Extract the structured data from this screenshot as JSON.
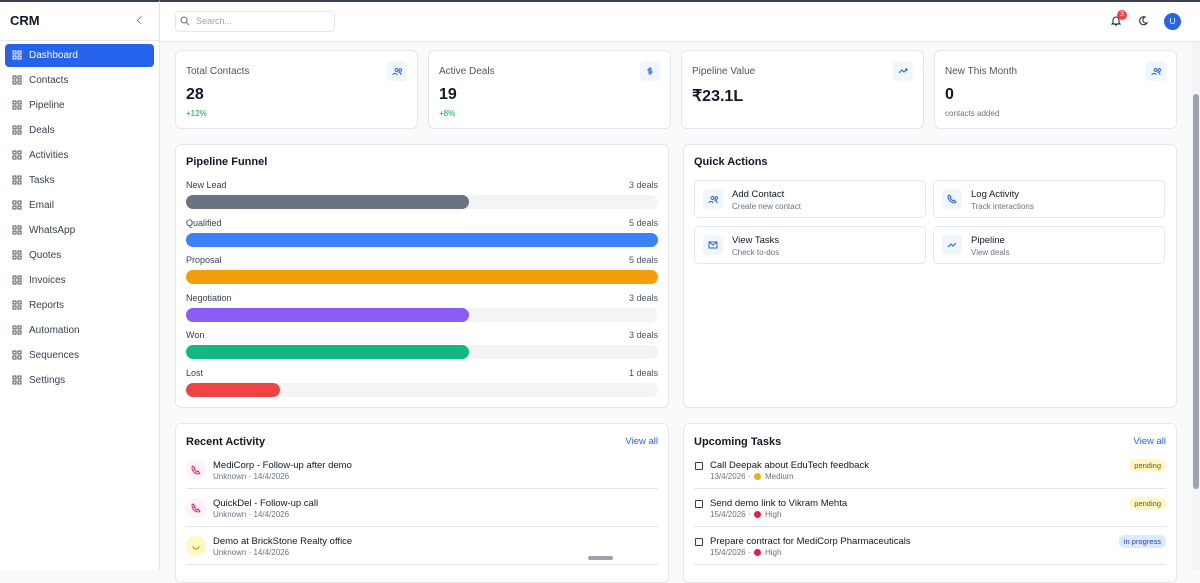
{
  "sidebar": {
    "brand": "CRM",
    "active_index": 0,
    "nav": [
      "Dashboard",
      "Contacts",
      "Pipeline",
      "Deals",
      "Activities",
      "Tasks",
      "Email",
      "WhatsApp",
      "Quotes",
      "Invoices",
      "Reports",
      "Automation",
      "Sequences",
      "Settings"
    ]
  },
  "topbar": {
    "search_placeholder": "Search...",
    "notifications": "3",
    "avatar": "U"
  },
  "stats": [
    {
      "label": "Total Contacts",
      "value": "28",
      "note": "+12%"
    },
    {
      "label": "Active Deals",
      "value": "19",
      "note": "+8%"
    },
    {
      "label": "Pipeline Value",
      "value": "₹23.1L"
    },
    {
      "label": "New This Month",
      "value": "0",
      "note": "contacts added"
    }
  ],
  "funnel": {
    "title": "Pipeline Funnel",
    "stages": [
      {
        "name": "New Lead",
        "count": 3,
        "label": "3 deals",
        "color": "#6b7280"
      },
      {
        "name": "Qualified",
        "count": 5,
        "label": "5 deals",
        "color": "#3b82f6"
      },
      {
        "name": "Proposal",
        "count": 5,
        "label": "5 deals",
        "color": "#f59e0b"
      },
      {
        "name": "Negotiation",
        "count": 3,
        "label": "3 deals",
        "color": "#8b5cf6"
      },
      {
        "name": "Won",
        "count": 3,
        "label": "3 deals",
        "color": "#10b981"
      },
      {
        "name": "Lost",
        "count": 1,
        "label": "1 deals",
        "color": "#ef4444"
      }
    ]
  },
  "quick_actions": {
    "title": "Quick Actions",
    "items": [
      {
        "title": "Add Contact",
        "subtitle": "Create new contact"
      },
      {
        "title": "Log Activity",
        "subtitle": "Track interactions"
      },
      {
        "title": "View Tasks",
        "subtitle": "Check to-dos"
      },
      {
        "title": "Pipeline",
        "subtitle": "View deals"
      }
    ]
  },
  "recent_activity": {
    "title": "Recent Activity",
    "link": "View all",
    "items": [
      {
        "title": "MediCorp - Follow-up after demo",
        "meta": "Unknown · 14/4/2026"
      },
      {
        "title": "QuickDel - Follow-up call",
        "meta": "Unknown · 14/4/2026"
      },
      {
        "title": "Demo at BrickStone Realty office",
        "meta": "Unknown · 14/4/2026"
      }
    ]
  },
  "upcoming_tasks": {
    "title": "Upcoming Tasks",
    "link": "View all",
    "items": [
      {
        "title": "Call Deepak about EduTech feedback",
        "date": "13/4/2026 ·",
        "priority": "Medium",
        "status": "pending"
      },
      {
        "title": "Send demo link to Vikram Mehta",
        "date": "15/4/2026 ·",
        "priority": "High",
        "status": "pending"
      },
      {
        "title": "Prepare contract for MediCorp Pharmaceuticals",
        "date": "15/4/2026 ·",
        "priority": "High",
        "status": "in progress"
      }
    ]
  }
}
